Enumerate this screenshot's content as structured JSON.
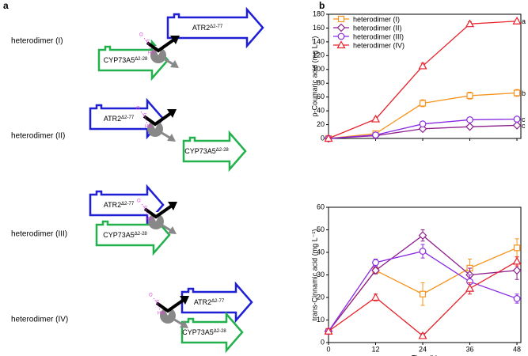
{
  "panel_labels": [
    "a",
    "b"
  ],
  "diagram": {
    "enzymes": {
      "atr2": {
        "name": "ATR2",
        "superscript": "Δ2-77"
      },
      "cyp": {
        "name": "CYP73A5",
        "superscript": "Δ2-28"
      }
    },
    "linker_labels": [
      "O",
      "C",
      "HN"
    ],
    "constructs": [
      {
        "label": "heterodimer (I)"
      },
      {
        "label": "heterodimer (II)"
      },
      {
        "label": "heterodimer (III)"
      },
      {
        "label": "heterodimer (IV)"
      }
    ]
  },
  "chart_data": [
    {
      "type": "line",
      "y_label": "p-Coumaric acid (mg L⁻¹)",
      "x": [
        0,
        12,
        24,
        36,
        48
      ],
      "xlim": [
        0,
        49
      ],
      "xticks": [
        0,
        12,
        24,
        36,
        48
      ],
      "ylim": [
        0,
        180
      ],
      "yticks": [
        0,
        20,
        40,
        60,
        80,
        100,
        120,
        140,
        160,
        180
      ],
      "legend": "top-left",
      "series": [
        {
          "name": "heterodimer (I)",
          "color": "#f7941d",
          "marker": "square",
          "values": [
            0,
            7,
            51,
            62,
            66
          ],
          "errors": [
            0,
            1.5,
            5,
            5,
            5
          ],
          "annotation": "b"
        },
        {
          "name": "heterodimer (II)",
          "color": "#8e1e8e",
          "marker": "diamond",
          "values": [
            0,
            4,
            14,
            17,
            19
          ],
          "errors": [
            0,
            1,
            2,
            2,
            2
          ],
          "annotation": "c"
        },
        {
          "name": "heterodimer (III)",
          "color": "#8a2be2",
          "marker": "circle",
          "values": [
            0,
            5,
            21,
            27,
            28
          ],
          "errors": [
            0,
            1,
            2,
            2,
            2
          ],
          "annotation": "c"
        },
        {
          "name": "heterodimer (IV)",
          "color": "#e8202a",
          "marker": "triangle",
          "values": [
            0,
            28,
            105,
            166,
            170
          ],
          "errors": [
            0,
            2,
            4,
            3,
            2
          ],
          "annotation": "a"
        }
      ]
    },
    {
      "type": "line",
      "y_label": "trans-Cinnamic acid (mg L⁻¹)",
      "x_label": "Time (h)",
      "x": [
        0,
        12,
        24,
        36,
        48
      ],
      "xlim": [
        0,
        49
      ],
      "xticks": [
        0,
        12,
        24,
        36,
        48
      ],
      "ylim": [
        0,
        60
      ],
      "yticks": [
        0,
        10,
        20,
        30,
        40,
        50,
        60
      ],
      "series": [
        {
          "name": "heterodimer (I)",
          "color": "#f7941d",
          "marker": "square",
          "values": [
            5,
            32,
            21.5,
            33,
            42
          ],
          "errors": [
            0,
            1.5,
            5,
            4,
            4
          ]
        },
        {
          "name": "heterodimer (II)",
          "color": "#8e1e8e",
          "marker": "diamond",
          "values": [
            5,
            32,
            47.5,
            30,
            32
          ],
          "errors": [
            0,
            1.5,
            2.5,
            3,
            4
          ]
        },
        {
          "name": "heterodimer (III)",
          "color": "#8a2be2",
          "marker": "circle",
          "values": [
            5,
            35.5,
            40.5,
            27,
            19.5
          ],
          "errors": [
            0,
            1.5,
            3,
            3,
            2
          ]
        },
        {
          "name": "heterodimer (IV)",
          "color": "#e8202a",
          "marker": "triangle",
          "values": [
            5,
            20,
            3,
            24,
            36
          ],
          "errors": [
            0,
            1.5,
            1,
            2.5,
            2
          ]
        }
      ]
    }
  ]
}
